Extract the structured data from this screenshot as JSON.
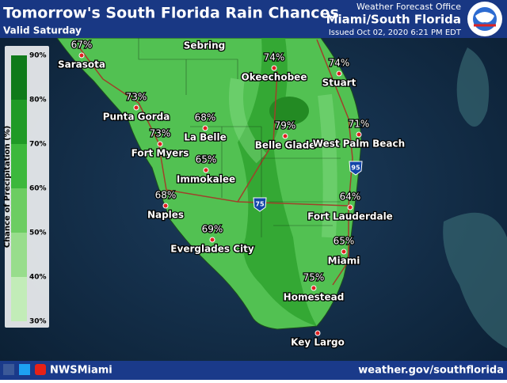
{
  "header": {
    "title": "Tomorrow's South Florida Rain Chances",
    "valid": "Valid Saturday",
    "office": "Weather Forecast Office",
    "region": "Miami/South Florida",
    "issued": "Issued Oct 02, 2020 6:21 PM EDT"
  },
  "legend": {
    "title": "Chance of Precipitation (%)",
    "levels": [
      "90%",
      "80%",
      "70%",
      "60%",
      "50%",
      "40%",
      "30%"
    ]
  },
  "places": [
    {
      "name": "Sebring"
    },
    {
      "name": "Sarasota",
      "chance": "67%"
    },
    {
      "name": "Okeechobee",
      "chance": "74%"
    },
    {
      "name": "Stuart",
      "chance": "74%"
    },
    {
      "name": "Punta Gorda",
      "chance": "73%"
    },
    {
      "name": "La Belle",
      "chance": "68%"
    },
    {
      "name": "Belle Glade",
      "chance": "79%"
    },
    {
      "name": "West Palm Beach",
      "chance": "71%"
    },
    {
      "name": "Fort Myers",
      "chance": "73%"
    },
    {
      "name": "Immokalee",
      "chance": "65%"
    },
    {
      "name": "Naples",
      "chance": "68%"
    },
    {
      "name": "Fort Lauderdale",
      "chance": "64%"
    },
    {
      "name": "Everglades City",
      "chance": "69%"
    },
    {
      "name": "Miami",
      "chance": "65%"
    },
    {
      "name": "Homestead",
      "chance": "75%"
    },
    {
      "name": "Key Largo"
    }
  ],
  "highways": [
    "95",
    "75"
  ],
  "footer": {
    "handle": "NWSMiami",
    "url": "weather.gov/southflorida"
  }
}
